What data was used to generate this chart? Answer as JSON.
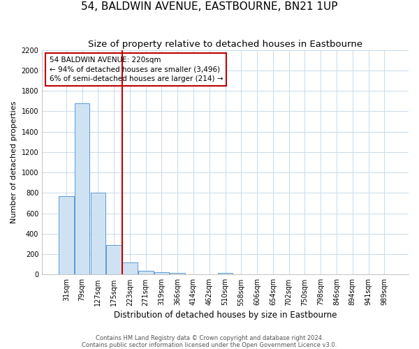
{
  "title": "54, BALDWIN AVENUE, EASTBOURNE, BN21 1UP",
  "subtitle": "Size of property relative to detached houses in Eastbourne",
  "xlabel": "Distribution of detached houses by size in Eastbourne",
  "ylabel": "Number of detached properties",
  "footer_line1": "Contains HM Land Registry data © Crown copyright and database right 2024.",
  "footer_line2": "Contains public sector information licensed under the Open Government Licence v3.0.",
  "categories": [
    "31sqm",
    "79sqm",
    "127sqm",
    "175sqm",
    "223sqm",
    "271sqm",
    "319sqm",
    "366sqm",
    "414sqm",
    "462sqm",
    "510sqm",
    "558sqm",
    "606sqm",
    "654sqm",
    "702sqm",
    "750sqm",
    "798sqm",
    "846sqm",
    "894sqm",
    "941sqm",
    "989sqm"
  ],
  "values": [
    770,
    1680,
    800,
    290,
    120,
    35,
    25,
    15,
    5,
    0,
    15,
    0,
    0,
    0,
    0,
    0,
    0,
    0,
    0,
    0,
    0
  ],
  "bar_color": "#cfe2f3",
  "bar_edge_color": "#5b9bd5",
  "property_line_color": "#c00000",
  "annotation_text": "54 BALDWIN AVENUE: 220sqm\n← 94% of detached houses are smaller (3,496)\n6% of semi-detached houses are larger (214) →",
  "annotation_box_color": "#c00000",
  "ylim": [
    0,
    2200
  ],
  "yticks": [
    0,
    200,
    400,
    600,
    800,
    1000,
    1200,
    1400,
    1600,
    1800,
    2000,
    2200
  ],
  "grid_color": "#c8daea",
  "background_color": "#ffffff",
  "title_fontsize": 11,
  "subtitle_fontsize": 9.5,
  "annotation_fontsize": 7.5,
  "tick_fontsize": 7,
  "ylabel_fontsize": 8,
  "xlabel_fontsize": 8.5,
  "footer_fontsize": 6
}
